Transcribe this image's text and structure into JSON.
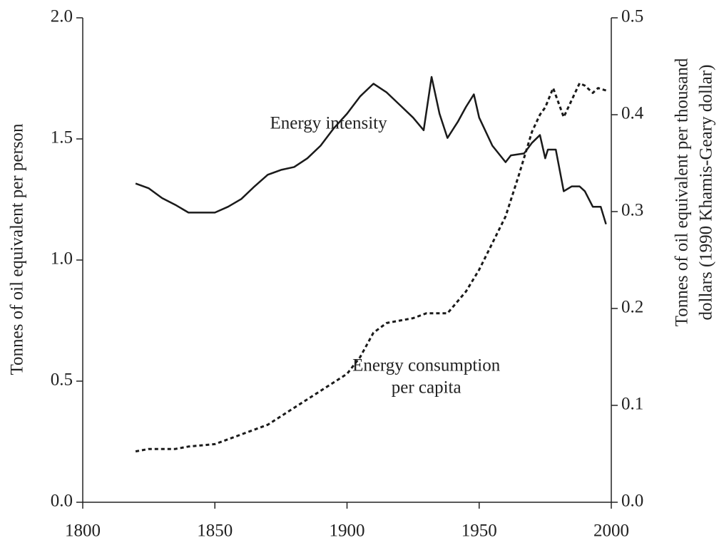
{
  "chart_data": {
    "type": "line",
    "ylabel": "Tonnes of oil equivalent per person",
    "y2label": [
      "Tonnes of oil equivalent per thousand",
      "dollars (1990 Khamis-Geary dollar)"
    ],
    "annotations": [
      {
        "lines": [
          "Energy intensity"
        ],
        "x": 1893,
        "y": 1.56
      },
      {
        "lines": [
          "Energy consumption",
          "per capita"
        ],
        "x": 1930,
        "y": 0.56
      }
    ],
    "series": [
      {
        "color": "#1a1a1a",
        "style": "solid",
        "axis": "y2",
        "x": [
          1820,
          1825,
          1830,
          1835,
          1840,
          1845,
          1850,
          1855,
          1860,
          1865,
          1870,
          1875,
          1880,
          1885,
          1890,
          1895,
          1900,
          1905,
          1910,
          1915,
          1920,
          1925,
          1929,
          1932,
          1935,
          1938,
          1942,
          1945,
          1948,
          1950,
          1955,
          1960,
          1962,
          1967,
          1970,
          1973,
          1975,
          1976,
          1979,
          1982,
          1985,
          1988,
          1990,
          1993,
          1996,
          1998
        ],
        "values": [
          0.329,
          0.324,
          0.314,
          0.307,
          0.299,
          0.299,
          0.299,
          0.305,
          0.313,
          0.326,
          0.338,
          0.343,
          0.346,
          0.355,
          0.368,
          0.386,
          0.401,
          0.419,
          0.432,
          0.423,
          0.41,
          0.397,
          0.384,
          0.439,
          0.401,
          0.376,
          0.393,
          0.408,
          0.421,
          0.397,
          0.368,
          0.351,
          0.358,
          0.36,
          0.371,
          0.379,
          0.355,
          0.364,
          0.364,
          0.321,
          0.326,
          0.326,
          0.321,
          0.305,
          0.305,
          0.287
        ]
      },
      {
        "color": "#1a1a1a",
        "style": "dotted",
        "axis": "y",
        "x": [
          1820,
          1825,
          1835,
          1840,
          1850,
          1860,
          1870,
          1880,
          1890,
          1900,
          1905,
          1910,
          1915,
          1920,
          1925,
          1930,
          1938,
          1945,
          1950,
          1955,
          1960,
          1965,
          1970,
          1973,
          1975,
          1978,
          1980,
          1982,
          1985,
          1988,
          1990,
          1993,
          1995,
          1998
        ],
        "values": [
          0.21,
          0.22,
          0.22,
          0.23,
          0.24,
          0.28,
          0.32,
          0.39,
          0.46,
          0.53,
          0.6,
          0.7,
          0.74,
          0.75,
          0.76,
          0.78,
          0.78,
          0.87,
          0.96,
          1.07,
          1.18,
          1.35,
          1.53,
          1.6,
          1.63,
          1.71,
          1.65,
          1.59,
          1.66,
          1.73,
          1.72,
          1.69,
          1.71,
          1.7
        ]
      }
    ],
    "xlim": [
      1800,
      2000
    ],
    "xticks": [
      1800,
      1850,
      1900,
      1950,
      2000
    ],
    "ylim": [
      0,
      2
    ],
    "yticks": [
      {
        "value": 0,
        "label": "0.0"
      },
      0.5,
      {
        "value": 1,
        "label": "1.0"
      },
      1.5,
      {
        "value": 2,
        "label": "2.0"
      }
    ],
    "y2lim": [
      0,
      0.5
    ],
    "y2ticks": [
      {
        "value": 0,
        "label": "0.0"
      },
      0.1,
      0.2,
      0.3,
      0.4,
      0.5
    ]
  }
}
